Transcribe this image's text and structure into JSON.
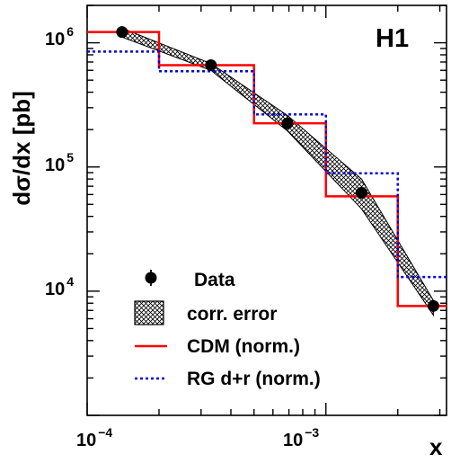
{
  "chart_data": {
    "type": "line",
    "experiment_label": "H1",
    "xlabel": "x",
    "ylabel": "dσ/dx [pb]",
    "x_scale": "log",
    "y_scale": "log",
    "xlim": [
      0.0001,
      0.0032
    ],
    "ylim": [
      1000,
      2000000
    ],
    "x_ticks": [
      {
        "base": "10",
        "exp": "−4",
        "value": 0.0001
      },
      {
        "base": "10",
        "exp": "−3",
        "value": 0.001
      }
    ],
    "y_ticks": [
      {
        "base": "10",
        "exp": "4",
        "value": 10000
      },
      {
        "base": "10",
        "exp": "5",
        "value": 100000
      },
      {
        "base": "10",
        "exp": "6",
        "value": 1000000
      }
    ],
    "grid": false,
    "legend_position": "bottom-left",
    "legend": {
      "data": "Data",
      "corr_error": "corr. error",
      "cdm": "CDM (norm.)",
      "rg": "RG d+r (norm.)"
    },
    "bin_edges": [
      0.0001,
      0.0002,
      0.0005,
      0.001,
      0.002,
      0.0032
    ],
    "series": [
      {
        "name": "Data",
        "kind": "points",
        "x": [
          0.00014,
          0.00033,
          0.00069,
          0.00141,
          0.00282
        ],
        "y": [
          1220000,
          660000,
          225000,
          62000,
          7600
        ],
        "err_low": [
          1130000,
          620000,
          210000,
          58000,
          7000
        ],
        "err_high": [
          1310000,
          700000,
          240000,
          66000,
          8200
        ],
        "color": "#000000"
      },
      {
        "name": "corr. error",
        "kind": "band",
        "x": [
          0.00014,
          0.00033,
          0.00069,
          0.00141,
          0.00282
        ],
        "low": [
          1110000,
          600000,
          195000,
          46000,
          6400
        ],
        "high": [
          1310000,
          680000,
          260000,
          80000,
          8400
        ]
      },
      {
        "name": "CDM (norm.)",
        "kind": "histogram",
        "values": [
          1220000,
          660000,
          225000,
          58000,
          7600
        ],
        "color": "#ff0000",
        "style": "solid"
      },
      {
        "name": "RG d+r (norm.)",
        "kind": "histogram",
        "values": [
          850000,
          590000,
          265000,
          89000,
          13000
        ],
        "color": "#0000dd",
        "style": "dotted"
      }
    ]
  }
}
